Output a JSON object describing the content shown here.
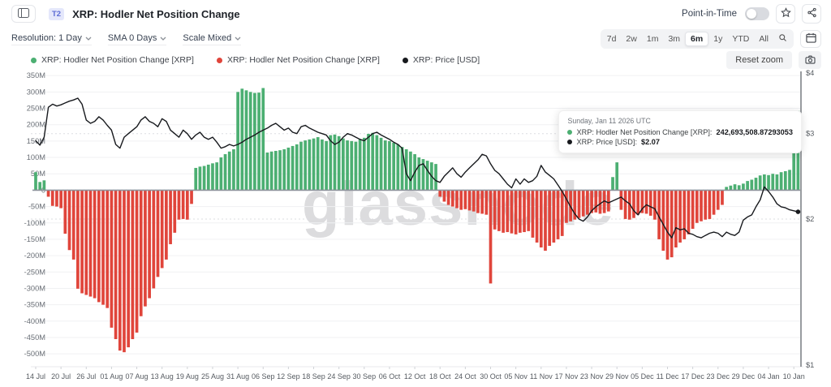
{
  "header": {
    "badge": "T2",
    "title": "XRP: Hodler Net Position Change",
    "point_in_time_label": "Point-in-Time"
  },
  "toolbar": {
    "resolution": "Resolution: 1 Day",
    "sma": "SMA 0 Days",
    "scale": "Scale Mixed",
    "ranges": [
      "7d",
      "2w",
      "1m",
      "3m",
      "6m",
      "1y",
      "YTD",
      "All"
    ],
    "selected_range": "6m"
  },
  "legend": [
    {
      "label": "XRP: Hodler Net Position Change [XRP]",
      "color": "#4caf72"
    },
    {
      "label": "XRP: Hodler Net Position Change [XRP]",
      "color": "#e0453b"
    },
    {
      "label": "XRP: Price [USD]",
      "color": "#17191d"
    }
  ],
  "actions": {
    "reset_zoom": "Reset zoom"
  },
  "tooltip": {
    "date": "Sunday, Jan 11 2026 UTC",
    "rows": [
      {
        "color": "#4caf72",
        "label": "XRP: Hodler Net Position Change [XRP]:",
        "value": "242,693,508.87293053"
      },
      {
        "color": "#17191d",
        "label": "XRP: Price [USD]:",
        "value": "$2.07"
      }
    ]
  },
  "watermark": "glassnode",
  "chart_data": {
    "type": "mixed",
    "title": "XRP: Hodler Net Position Change",
    "x_tick_labels": [
      "14 Jul",
      "20 Jul",
      "26 Jul",
      "01 Aug",
      "07 Aug",
      "13 Aug",
      "19 Aug",
      "25 Aug",
      "31 Aug",
      "06 Sep",
      "12 Sep",
      "18 Sep",
      "24 Sep",
      "30 Sep",
      "06 Oct",
      "12 Oct",
      "18 Oct",
      "24 Oct",
      "30 Oct",
      "05 Nov",
      "11 Nov",
      "17 Nov",
      "23 Nov",
      "29 Nov",
      "05 Dec",
      "11 Dec",
      "17 Dec",
      "23 Dec",
      "29 Dec",
      "04 Jan",
      "10 Jan"
    ],
    "left_axis": {
      "unit": "XRP (millions)",
      "range": [
        -500,
        350
      ],
      "ticks": [
        {
          "label": "350M",
          "v": 350
        },
        {
          "label": "300M",
          "v": 300
        },
        {
          "label": "250M",
          "v": 250
        },
        {
          "label": "200M",
          "v": 200
        },
        {
          "label": "150M",
          "v": 150
        },
        {
          "label": "100M",
          "v": 100
        },
        {
          "label": "50M",
          "v": 50
        },
        {
          "label": "0",
          "v": 0
        },
        {
          "label": "-50M",
          "v": -50
        },
        {
          "label": "-100M",
          "v": -100
        },
        {
          "label": "-150M",
          "v": -150
        },
        {
          "label": "-200M",
          "v": -200
        },
        {
          "label": "-250M",
          "v": -250
        },
        {
          "label": "-300M",
          "v": -300
        },
        {
          "label": "-350M",
          "v": -350
        },
        {
          "label": "-400M",
          "v": -400
        },
        {
          "label": "-450M",
          "v": -450
        },
        {
          "label": "-500M",
          "v": -500
        }
      ]
    },
    "right_axis": {
      "unit": "USD",
      "scale": "log",
      "range": [
        1,
        4
      ],
      "ticks": [
        {
          "label": "$4",
          "v": 4
        },
        {
          "label": "$3",
          "v": 3
        },
        {
          "label": "$2",
          "v": 2
        },
        {
          "label": "$1",
          "v": 1
        }
      ]
    },
    "series": [
      {
        "name": "XRP: Hodler Net Position Change [XRP]",
        "type": "bar",
        "unit": "millions of XRP per day",
        "values": [
          55,
          25,
          30,
          -20,
          -48,
          -50,
          -55,
          -133,
          -183,
          -212,
          -301,
          -315,
          -320,
          -325,
          -330,
          -342,
          -350,
          -360,
          -420,
          -455,
          -490,
          -495,
          -480,
          -455,
          -435,
          -385,
          -355,
          -330,
          -300,
          -265,
          -238,
          -212,
          -165,
          -130,
          -90,
          -88,
          -90,
          -42,
          68,
          72,
          74,
          78,
          82,
          85,
          100,
          110,
          118,
          125,
          300,
          310,
          305,
          300,
          297,
          298,
          312,
          115,
          118,
          120,
          122,
          125,
          130,
          135,
          140,
          148,
          152,
          155,
          158,
          162,
          155,
          150,
          168,
          170,
          165,
          158,
          152,
          150,
          148,
          155,
          160,
          172,
          175,
          168,
          160,
          152,
          150,
          145,
          140,
          132,
          125,
          118,
          110,
          100,
          95,
          90,
          85,
          80,
          -20,
          -35,
          -45,
          -50,
          -55,
          -60,
          -58,
          -62,
          -65,
          -70,
          -72,
          -75,
          -285,
          -120,
          -125,
          -130,
          -128,
          -132,
          -135,
          -130,
          -128,
          -125,
          -145,
          -160,
          -175,
          -185,
          -170,
          -160,
          -150,
          -140,
          -100,
          -95,
          -90,
          -85,
          -80,
          -75,
          -70,
          -68,
          -72,
          -70,
          -65,
          40,
          85,
          -60,
          -88,
          -90,
          -85,
          -75,
          -70,
          -72,
          -78,
          -90,
          -150,
          -185,
          -212,
          -205,
          -175,
          -160,
          -150,
          -135,
          -118,
          -100,
          -95,
          -90,
          -88,
          -75,
          -60,
          -45,
          10,
          14,
          18,
          15,
          20,
          28,
          32,
          38,
          45,
          48,
          46,
          50,
          48,
          55,
          58,
          62,
          235,
          242.69
        ]
      },
      {
        "name": "XRP: Price [USD]",
        "type": "line",
        "unit": "USD",
        "values": [
          2.9,
          2.84,
          2.95,
          3.4,
          3.45,
          3.42,
          3.44,
          3.47,
          3.5,
          3.52,
          3.55,
          3.45,
          3.2,
          3.15,
          3.18,
          3.25,
          3.2,
          3.12,
          3.05,
          2.85,
          2.8,
          2.95,
          3.0,
          3.05,
          3.1,
          3.2,
          3.25,
          3.18,
          3.15,
          3.1,
          3.22,
          3.18,
          3.05,
          3.0,
          2.95,
          3.05,
          3.0,
          2.92,
          2.98,
          3.02,
          2.95,
          2.92,
          2.95,
          2.88,
          2.8,
          2.82,
          2.85,
          2.83,
          2.85,
          2.88,
          2.92,
          2.95,
          2.98,
          3.02,
          3.05,
          3.08,
          3.12,
          3.15,
          3.1,
          3.05,
          3.08,
          3.02,
          3.0,
          3.1,
          3.12,
          3.08,
          3.05,
          3.02,
          3.0,
          2.98,
          2.9,
          2.85,
          2.88,
          2.95,
          3.0,
          2.98,
          2.95,
          2.92,
          2.9,
          2.95,
          3.0,
          3.02,
          2.98,
          2.95,
          2.92,
          2.88,
          2.85,
          2.8,
          2.48,
          2.4,
          2.5,
          2.58,
          2.6,
          2.52,
          2.45,
          2.4,
          2.38,
          2.45,
          2.5,
          2.55,
          2.48,
          2.44,
          2.5,
          2.55,
          2.6,
          2.65,
          2.72,
          2.7,
          2.6,
          2.52,
          2.48,
          2.42,
          2.36,
          2.32,
          2.42,
          2.36,
          2.42,
          2.38,
          2.4,
          2.45,
          2.58,
          2.5,
          2.46,
          2.42,
          2.35,
          2.28,
          2.2,
          2.12,
          2.05,
          2.0,
          1.98,
          2.02,
          2.08,
          2.12,
          2.15,
          2.18,
          2.16,
          2.18,
          2.2,
          2.22,
          2.18,
          2.15,
          2.08,
          2.04,
          2.1,
          2.14,
          2.12,
          2.1,
          2.02,
          1.95,
          1.88,
          1.83,
          1.92,
          1.9,
          1.91,
          1.87,
          1.86,
          1.84,
          1.83,
          1.85,
          1.87,
          1.88,
          1.87,
          1.84,
          1.88,
          1.86,
          1.85,
          1.88,
          1.99,
          2.02,
          2.04,
          2.12,
          2.19,
          2.33,
          2.28,
          2.22,
          2.15,
          2.12,
          2.11,
          2.09,
          2.08,
          2.07
        ]
      }
    ],
    "colors": {
      "positive": "#4caf72",
      "negative": "#e0453b",
      "price": "#17191d",
      "zero_line": "#8d929b",
      "grid": "#f0f1f3",
      "grid_dotted": "#dbdde2",
      "axis_text": "#6b7077"
    },
    "legend_position": "top-left",
    "grid": true
  }
}
